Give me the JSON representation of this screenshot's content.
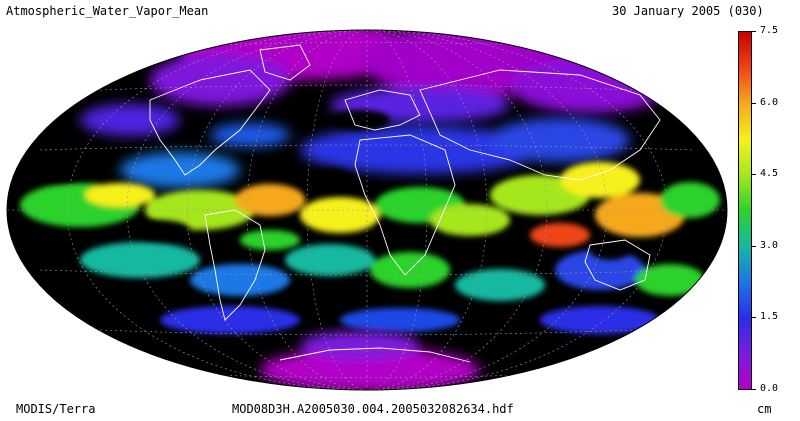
{
  "header": {
    "title": "Atmospheric_Water_Vapor_Mean",
    "date": "30 January 2005 (030)"
  },
  "footer": {
    "sensor": "MODIS/Terra",
    "filename": "MOD08D3H.A2005030.004.2005032082634.hdf"
  },
  "map": {
    "projection": "Hammer-Aitoff (elliptical)",
    "background": "#000000",
    "coastline_color": "#ffffff",
    "graticule_color": "#9a9a9a"
  },
  "legend": {
    "unit": "cm",
    "min": 0.0,
    "max": 7.5,
    "ticks": [
      "7.5",
      "6.0",
      "4.5",
      "3.0",
      "1.5",
      "0.0"
    ],
    "tick_values": [
      7.5,
      6.0,
      4.5,
      3.0,
      1.5,
      0.0
    ],
    "colors": [
      "#b300c8",
      "#7b1ae0",
      "#2a2fe6",
      "#1a78e6",
      "#18b8a0",
      "#2cd22c",
      "#a6e61e",
      "#f6f01e",
      "#f6a81e",
      "#ef4414",
      "#c80000"
    ]
  }
}
